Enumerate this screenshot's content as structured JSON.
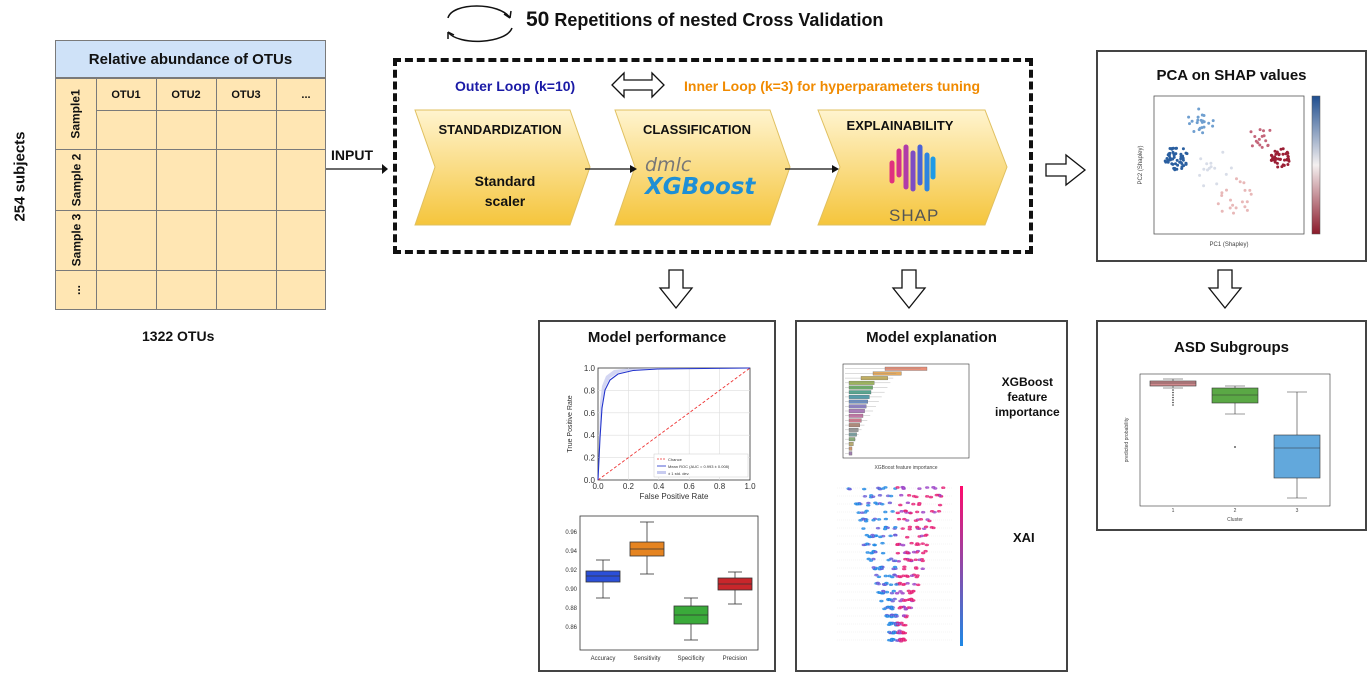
{
  "header": {
    "repetitions_number": "50",
    "repetitions_text": "Repetitions of nested Cross Validation"
  },
  "table": {
    "title": "Relative abundance of OTUs",
    "columns": [
      "OTU1",
      "OTU2",
      "OTU3",
      "..."
    ],
    "rows": [
      "Sample1",
      "Sample 2",
      "Sample 3",
      "..."
    ],
    "subjects_label": "254 subjects",
    "otus_label": "1322 OTUs"
  },
  "input_label": "INPUT",
  "loops": {
    "outer": "Outer Loop (k=10)",
    "inner": "Inner Loop (k=3) for hyperparameters tuning",
    "outer_color": "#1a1aa6",
    "inner_color": "#f08a00"
  },
  "stages": {
    "standardization": {
      "title": "STANDARDIZATION",
      "body_line1": "Standard",
      "body_line2": "scaler"
    },
    "classification": {
      "title": "CLASSIFICATION",
      "logo_small": "dmlc",
      "logo_big": "XGBoost"
    },
    "explainability": {
      "title": "EXPLAINABILITY",
      "logo_text": "SHAP"
    }
  },
  "panels": {
    "pca": {
      "title": "PCA on SHAP values",
      "xlabel": "PC1 (Shapley)",
      "ylabel": "PC2 (Shapley)"
    },
    "performance": {
      "title": "Model performance",
      "roc": {
        "xlabel": "False Positive Rate",
        "ylabel": "True Positive Rate",
        "ticks": [
          "0.0",
          "0.2",
          "0.4",
          "0.6",
          "0.8",
          "1.0"
        ],
        "legend": [
          "Chance",
          "Mean ROC (AUC = 0.993 ± 0.008)",
          "± 1 std. dev."
        ]
      },
      "box": {
        "categories": [
          "Accuracy",
          "Sensitivity",
          "Specificity",
          "Precision"
        ],
        "yticks": [
          "0.96",
          "0.94",
          "0.92",
          "0.90",
          "0.88",
          "0.86"
        ]
      }
    },
    "explanation": {
      "title": "Model explanation",
      "label1_line1": "XGBoost",
      "label1_line2": "feature",
      "label1_line3": "importance",
      "label2": "XAI",
      "xlabel": "XGBoost feature importance"
    },
    "subgroups": {
      "title": "ASD Subgroups",
      "xlabel": "Cluster",
      "ylabel": "predicted probability",
      "categories": [
        "1",
        "2",
        "3"
      ]
    }
  },
  "colors": {
    "chevron_top": "#fff2c9",
    "chevron_bottom": "#f5c842",
    "xgboost_blue": "#1e8fd6",
    "table_header": "#cfe2f8",
    "table_body": "#ffe6b3"
  }
}
